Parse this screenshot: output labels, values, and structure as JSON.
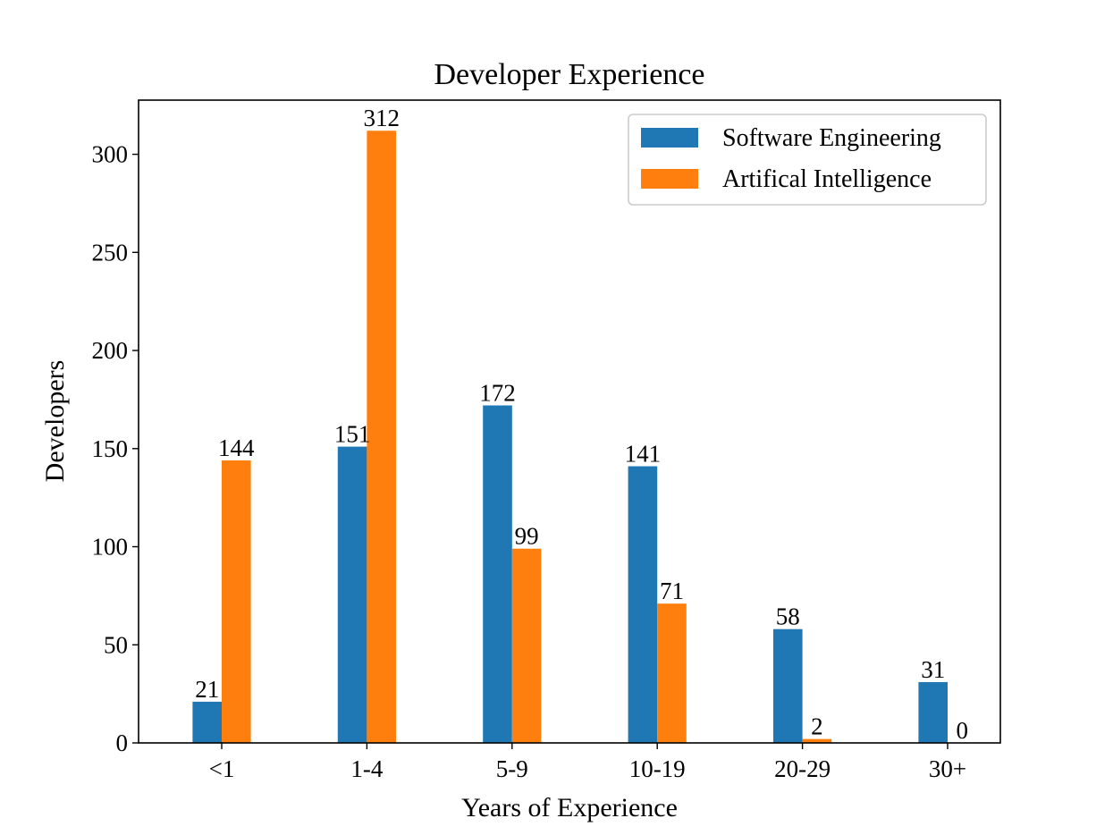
{
  "chart_data": {
    "type": "bar",
    "title": "Developer Experience",
    "xlabel": "Years of Experience",
    "ylabel": "Developers",
    "categories": [
      "<1",
      "1-4",
      "5-9",
      "10-19",
      "20-29",
      "30+"
    ],
    "series": [
      {
        "name": "Software Engineering",
        "color": "#1f77b4",
        "values": [
          21,
          151,
          172,
          141,
          58,
          31
        ]
      },
      {
        "name": "Artifical Intelligence",
        "color": "#ff7f0e",
        "values": [
          144,
          312,
          99,
          71,
          2,
          0
        ]
      }
    ],
    "ylim": [
      0,
      327.6
    ],
    "yticks": [
      0,
      50,
      100,
      150,
      200,
      250,
      300
    ],
    "grid": false,
    "legend": "top-right"
  }
}
